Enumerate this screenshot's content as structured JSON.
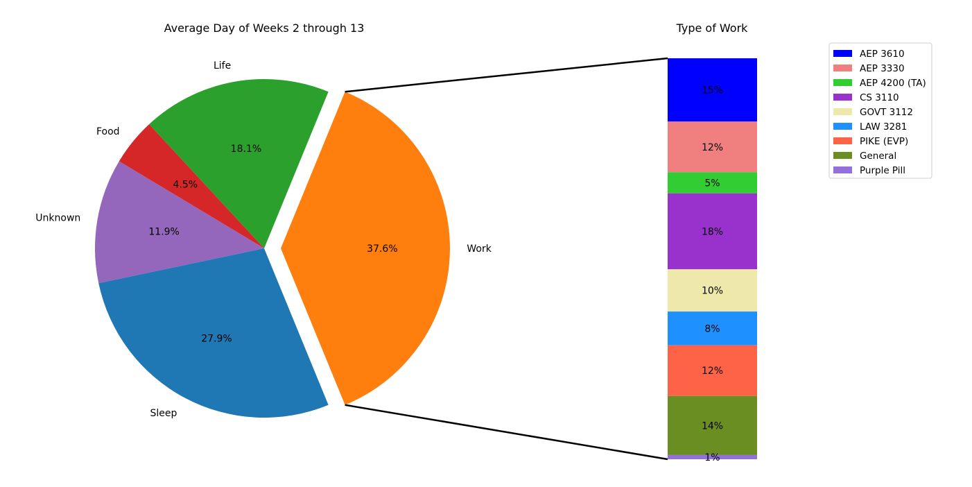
{
  "chart_data": [
    {
      "type": "pie",
      "title": "Average Day of Weeks 2 through 13",
      "slices": [
        {
          "label": "Work",
          "value": 37.6,
          "pct_label": "37.6%",
          "color": "#ff7f0e",
          "exploded": true
        },
        {
          "label": "Life",
          "value": 18.1,
          "pct_label": "18.1%",
          "color": "#2ca02c"
        },
        {
          "label": "Food",
          "value": 4.5,
          "pct_label": "4.5%",
          "color": "#d62728"
        },
        {
          "label": "Unknown",
          "value": 11.9,
          "pct_label": "11.9%",
          "color": "#9467bd"
        },
        {
          "label": "Sleep",
          "value": 27.9,
          "pct_label": "27.9%",
          "color": "#1f77b4"
        }
      ]
    },
    {
      "type": "bar",
      "stacked": true,
      "title": "Type of Work",
      "legend_position": "top-right",
      "series": [
        {
          "name": "AEP 3610",
          "value": 15,
          "pct_label": "15%",
          "color": "#0000ff"
        },
        {
          "name": "AEP 3330",
          "value": 12,
          "pct_label": "12%",
          "color": "#f08080"
        },
        {
          "name": "AEP 4200 (TA)",
          "value": 5,
          "pct_label": "5%",
          "color": "#32cd32"
        },
        {
          "name": "CS 3110",
          "value": 18,
          "pct_label": "18%",
          "color": "#9932cc"
        },
        {
          "name": "GOVT 3112",
          "value": 10,
          "pct_label": "10%",
          "color": "#eee8aa"
        },
        {
          "name": "LAW 3281",
          "value": 8,
          "pct_label": "8%",
          "color": "#1e90ff"
        },
        {
          "name": "PIKE (EVP)",
          "value": 12,
          "pct_label": "12%",
          "color": "#ff6347"
        },
        {
          "name": "General",
          "value": 14,
          "pct_label": "14%",
          "color": "#6b8e23"
        },
        {
          "name": "Purple Pill",
          "value": 1,
          "pct_label": "1%",
          "color": "#9370db"
        }
      ]
    }
  ]
}
